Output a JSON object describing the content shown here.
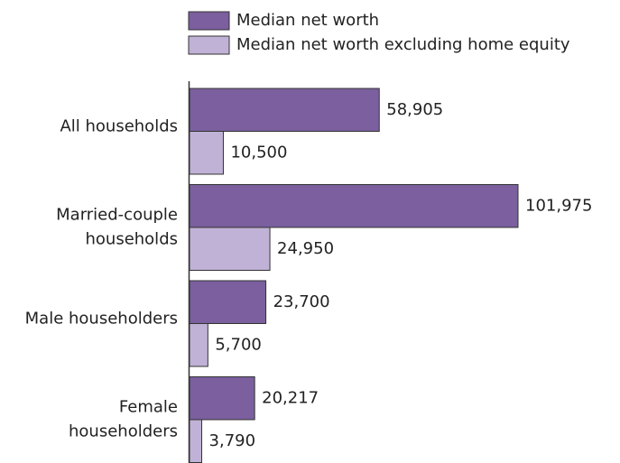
{
  "chart_data": {
    "type": "barh",
    "categories": [
      [
        "All households"
      ],
      [
        "Married-couple",
        "households"
      ],
      [
        "Male householders"
      ],
      [
        "Female",
        "householders"
      ]
    ],
    "series": [
      {
        "name": "Median net worth",
        "color": "#7b5f9e",
        "values": [
          58905,
          101975,
          23700,
          20217
        ],
        "value_labels": [
          "58,905",
          "101,975",
          "23,700",
          "20,217"
        ]
      },
      {
        "name": "Median net worth excluding home equity",
        "color": "#c0b2d6",
        "values": [
          10500,
          24950,
          5700,
          3790
        ],
        "value_labels": [
          "10,500",
          "24,950",
          "5,700",
          "3,790"
        ]
      }
    ]
  }
}
